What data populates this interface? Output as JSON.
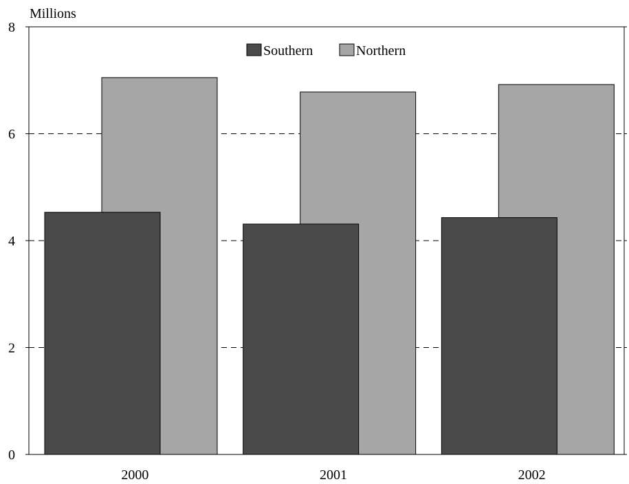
{
  "chart_data": {
    "type": "bar",
    "ylabel": "Millions",
    "categories": [
      "2000",
      "2001",
      "2002"
    ],
    "series": [
      {
        "name": "Southern",
        "values": [
          4.53,
          4.31,
          4.43
        ],
        "color": "#4a4a4a"
      },
      {
        "name": "Northern",
        "values": [
          7.05,
          6.78,
          6.92
        ],
        "color": "#a6a6a6"
      }
    ],
    "ylim": [
      0,
      8
    ],
    "yticks": [
      "0",
      "2",
      "4",
      "6",
      "8"
    ],
    "grid": "dashed horizontal",
    "legend_position": "top-center",
    "overlapping_bars": true
  }
}
